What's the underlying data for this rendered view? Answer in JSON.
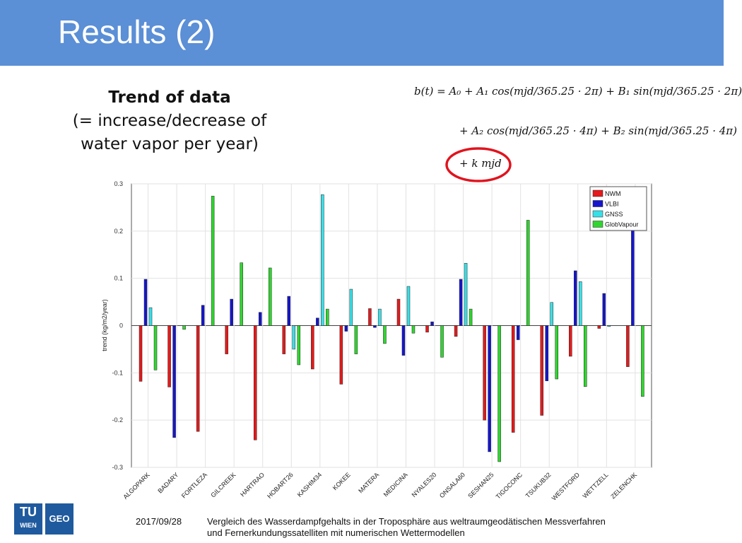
{
  "header": {
    "title": "Results (2)"
  },
  "subtitle": {
    "line1": "Trend of data",
    "line2": "(= increase/decrease of",
    "line3": "water vapor per year)"
  },
  "formula": {
    "line1": "b(t) = A₀ + A₁ cos(mjd/365.25 · 2π) + B₁ sin(mjd/365.25 · 2π)",
    "line2": "+ A₂ cos(mjd/365.25 · 4π) + B₂ sin(mjd/365.25 · 4π)",
    "line3": "+ k mjd"
  },
  "footer": {
    "date": "2017/09/28",
    "text1": "Vergleich des Wasserdampfgehalts in der Troposphäre aus weltraumgeodätischen Messverfahren",
    "text2": "und Fernerkundungssatelliten mit numerischen Wettermodellen"
  },
  "logos": {
    "tu": "TU",
    "wien": "WIEN",
    "geo": "GEO"
  },
  "colors": {
    "header": "#5b8fd6",
    "NWM": "#e41a1c",
    "VLBI": "#1515cc",
    "GNSS": "#36e0e8",
    "GlobVapour": "#2fd62f",
    "circle": "#e0141e"
  },
  "chart_data": {
    "type": "bar",
    "ylabel": "trend (kg/m2/year)",
    "ylim": [
      -0.3,
      0.3
    ],
    "yticks": [
      "0.3",
      "0.2",
      "0.1",
      "0",
      "-0.1",
      "-0.2",
      "-0.3"
    ],
    "grid": true,
    "legend_position": "top-right",
    "categories": [
      "ALGOPARK",
      "BADARY",
      "FORTLEZA",
      "GILCREEK",
      "HARTRAO",
      "HOBART26",
      "KASHIM34",
      "KOKEE",
      "MATERA",
      "MEDICINA",
      "NYALES20",
      "ONSALA60",
      "SESHAN25",
      "TIGOCONC",
      "TSUKUB32",
      "WESTFORD",
      "WETTZELL",
      "ZELENCHK"
    ],
    "series": [
      {
        "name": "NWM",
        "values": [
          -0.118,
          -0.13,
          -0.224,
          -0.06,
          -0.242,
          -0.06,
          -0.092,
          -0.124,
          0.036,
          0.056,
          -0.014,
          -0.023,
          -0.2,
          -0.226,
          -0.19,
          -0.065,
          -0.006,
          -0.087
        ]
      },
      {
        "name": "VLBI",
        "values": [
          0.098,
          -0.237,
          0.043,
          0.056,
          0.028,
          0.062,
          0.016,
          -0.012,
          -0.004,
          -0.063,
          0.008,
          0.098,
          -0.267,
          -0.03,
          -0.117,
          0.116,
          0.068,
          0.21
        ]
      },
      {
        "name": "GNSS",
        "values": [
          0.038,
          0,
          0,
          0,
          0,
          -0.05,
          0.277,
          0.077,
          0.035,
          0.083,
          0,
          0.132,
          0,
          0,
          0.049,
          0.093,
          -0.002,
          0
        ]
      },
      {
        "name": "GlobVapour",
        "values": [
          -0.094,
          -0.008,
          0.274,
          0.133,
          0.122,
          -0.083,
          0.035,
          -0.06,
          -0.038,
          -0.016,
          -0.067,
          0.035,
          -0.288,
          0.223,
          -0.113,
          -0.129,
          0,
          -0.15
        ]
      }
    ]
  }
}
